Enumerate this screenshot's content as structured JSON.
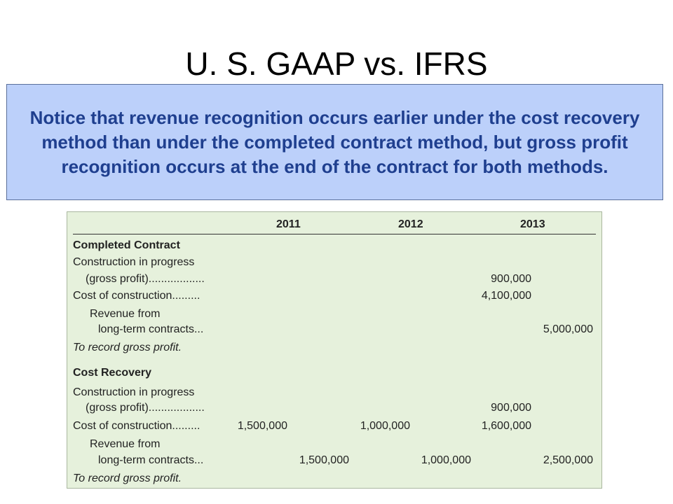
{
  "title": "U. S. GAAP vs. IFRS",
  "callout": "Notice that revenue recognition occurs earlier under the cost recovery method than under the completed contract method, but gross profit recognition occurs at the end of the contract for both methods.",
  "table": {
    "years": [
      "2011",
      "2012",
      "2013"
    ],
    "completed_contract": {
      "heading": "Completed Contract",
      "cip_line1": "Construction in progress",
      "cip_line2": "(gross profit)..................",
      "cip_2013_debit": "900,000",
      "cost_label": "Cost of construction.........",
      "cost_2013_debit": "4,100,000",
      "rev_line1": "Revenue from",
      "rev_line2": "long-term contracts...",
      "rev_2013_credit": "5,000,000",
      "memo": "To record gross profit."
    },
    "cost_recovery": {
      "heading": "Cost Recovery",
      "cip_line1": "Construction in progress",
      "cip_line2": "(gross profit)..................",
      "cip_2013_debit": "900,000",
      "cost_label": "Cost of construction.........",
      "cost_2011_debit": "1,500,000",
      "cost_2012_debit": "1,000,000",
      "cost_2013_debit": "1,600,000",
      "rev_line1": "Revenue from",
      "rev_line2": "long-term contracts...",
      "rev_2011_credit": "1,500,000",
      "rev_2012_credit": "1,000,000",
      "rev_2013_credit": "2,500,000",
      "memo": "To record gross profit."
    }
  }
}
